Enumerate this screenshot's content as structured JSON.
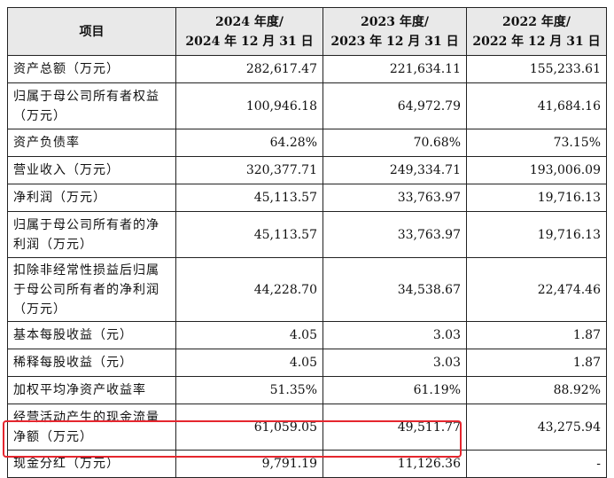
{
  "table": {
    "headers": [
      {
        "line1": "项目",
        "line2": ""
      },
      {
        "line1": "2024 年度/",
        "line2": "2024 年 12 月 31 日"
      },
      {
        "line1": "2023 年度/",
        "line2": "2023 年 12 月 31 日"
      },
      {
        "line1": "2022 年度/",
        "line2": "2022 年 12 月 31 日"
      }
    ],
    "rows": [
      {
        "label": "资产总额（万元）",
        "v2024": "282,617.47",
        "v2023": "221,634.11",
        "v2022": "155,233.61"
      },
      {
        "label": "归属于母公司所有者权益（万元）",
        "v2024": "100,946.18",
        "v2023": "64,972.79",
        "v2022": "41,684.16"
      },
      {
        "label": "资产负债率",
        "v2024": "64.28%",
        "v2023": "70.68%",
        "v2022": "73.15%"
      },
      {
        "label": "营业收入（万元）",
        "v2024": "320,377.71",
        "v2023": "249,334.71",
        "v2022": "193,006.09"
      },
      {
        "label": "净利润（万元）",
        "v2024": "45,113.57",
        "v2023": "33,763.97",
        "v2022": "19,716.13"
      },
      {
        "label": "归属于母公司所有者的净利润（万元）",
        "v2024": "45,113.57",
        "v2023": "33,763.97",
        "v2022": "19,716.13"
      },
      {
        "label": "扣除非经常性损益后归属于母公司所有者的净利润（万元）",
        "v2024": "44,228.70",
        "v2023": "34,538.67",
        "v2022": "22,474.46"
      },
      {
        "label": "基本每股收益（元）",
        "v2024": "4.05",
        "v2023": "3.03",
        "v2022": "1.87"
      },
      {
        "label": "稀释每股收益（元）",
        "v2024": "4.05",
        "v2023": "3.03",
        "v2022": "1.87"
      },
      {
        "label": "加权平均净资产收益率",
        "v2024": "51.35%",
        "v2023": "61.19%",
        "v2022": "88.92%"
      },
      {
        "label": "经营活动产生的现金流量净额（万元）",
        "v2024": "61,059.05",
        "v2023": "49,511.77",
        "v2022": "43,275.94"
      },
      {
        "label": "现金分红（万元）",
        "v2024": "9,791.19",
        "v2023": "11,126.36",
        "v2022": "-"
      }
    ]
  },
  "colors": {
    "highlight_border": "#e5262e",
    "header_bg": "#e9e9e9"
  }
}
